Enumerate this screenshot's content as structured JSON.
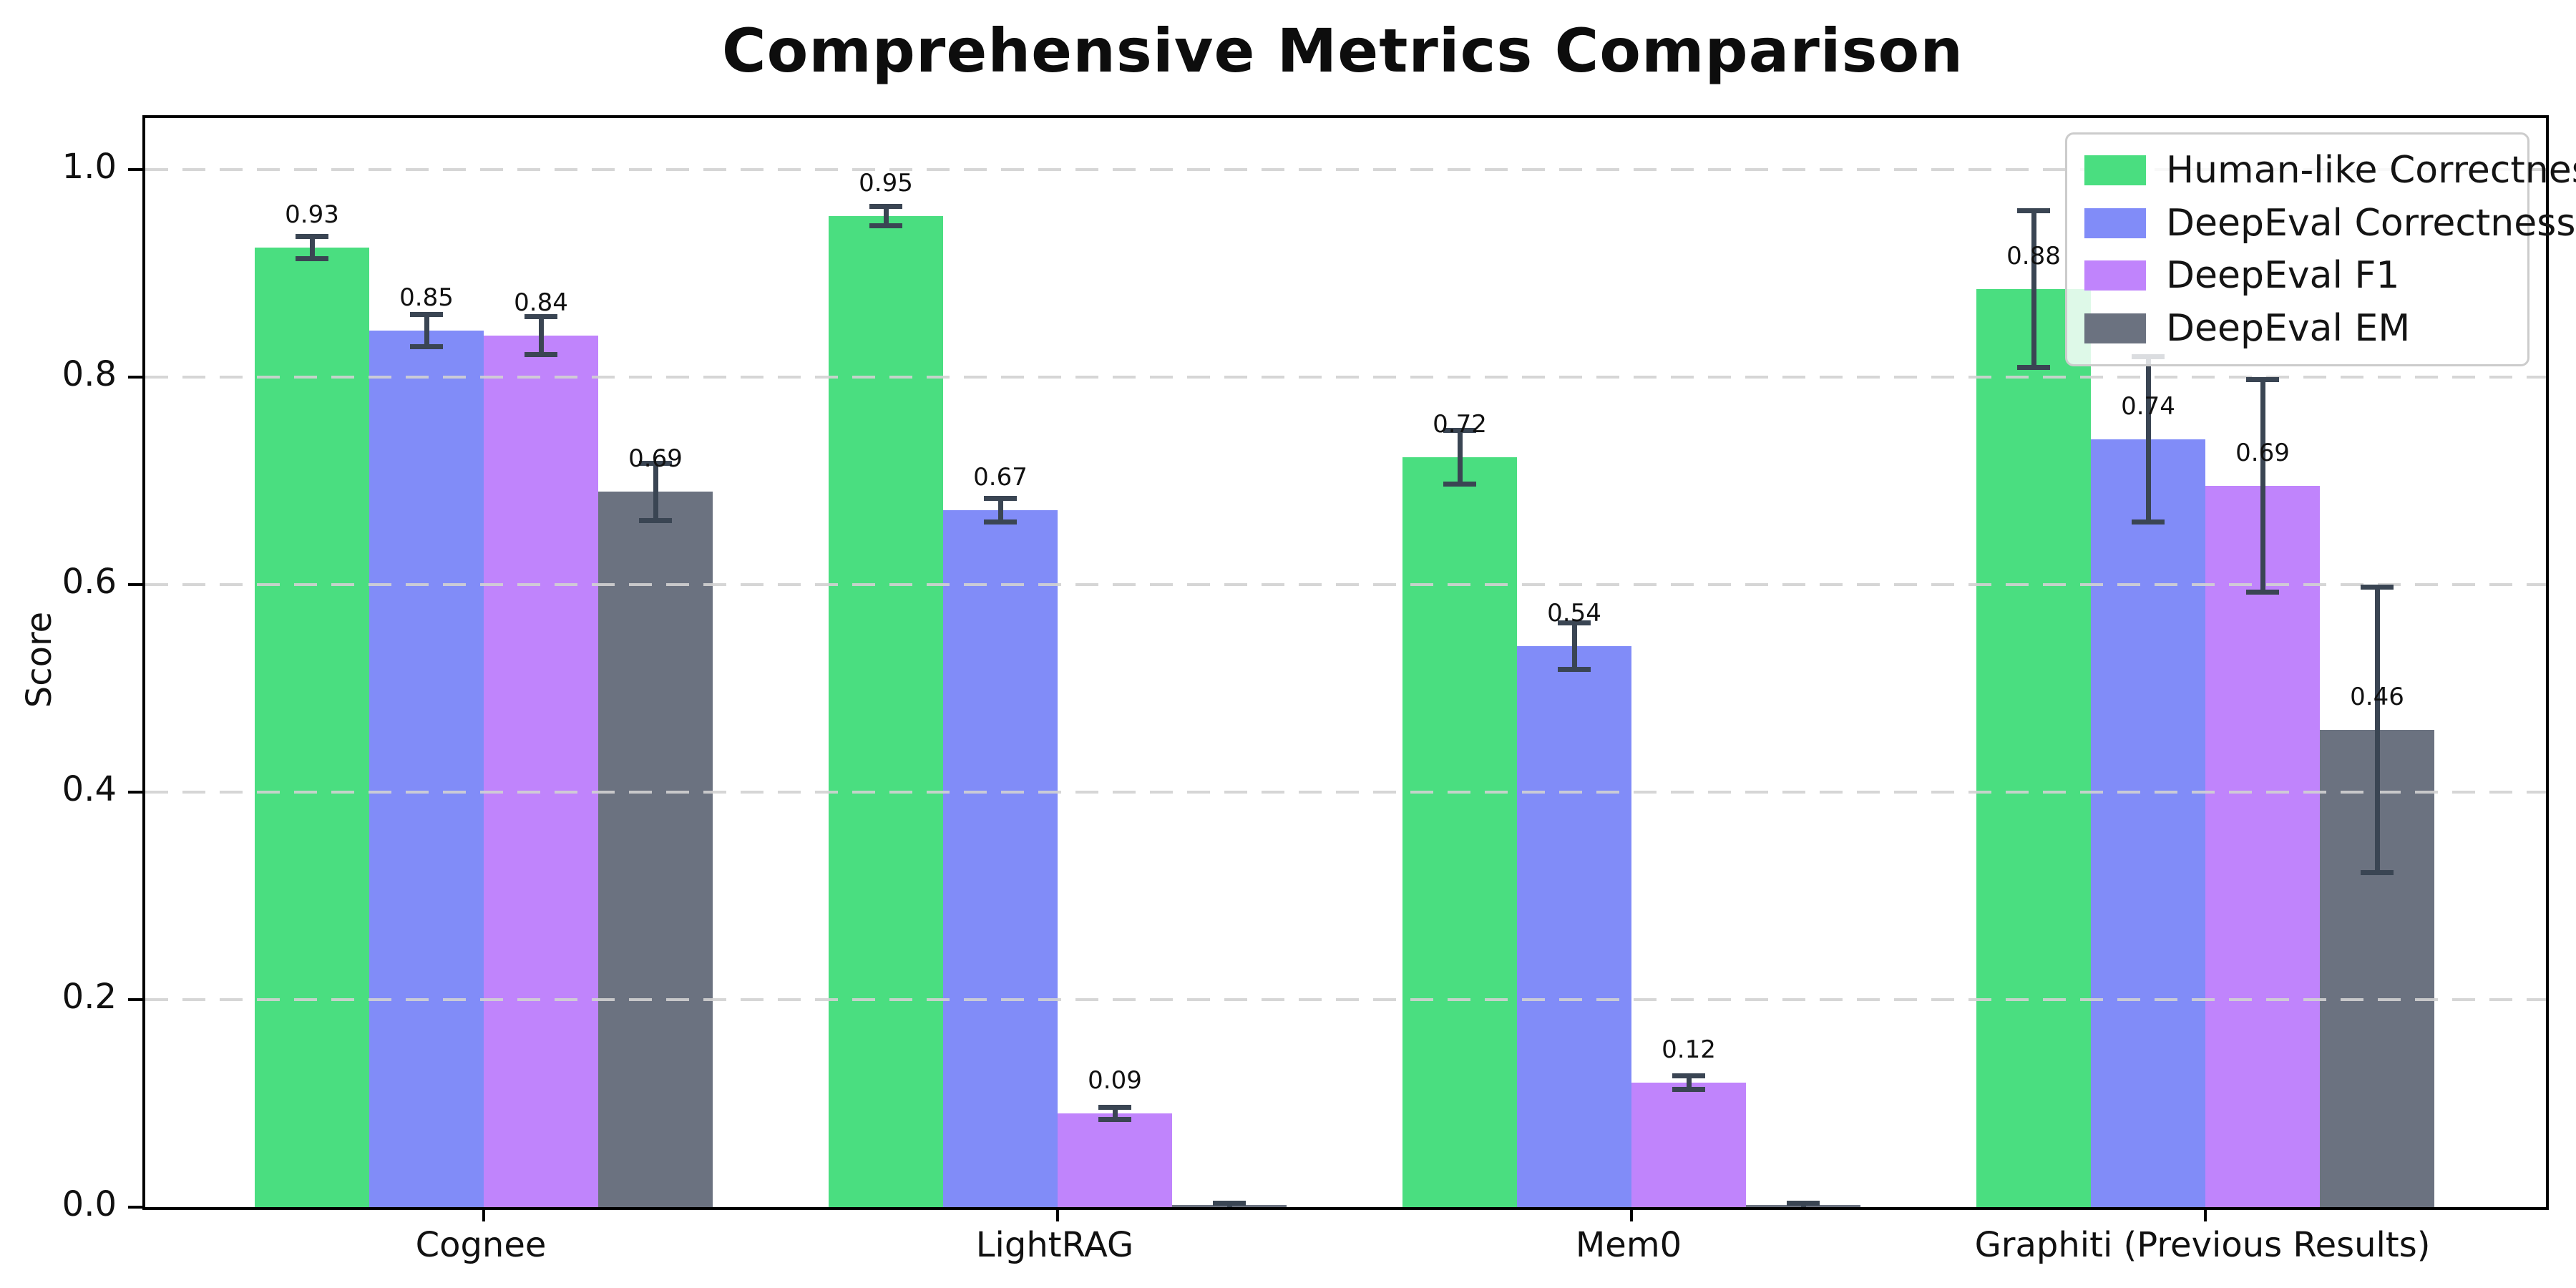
{
  "title": "Comprehensive Metrics Comparison",
  "chart_data": {
    "type": "bar",
    "title": "Comprehensive Metrics Comparison",
    "xlabel": "",
    "ylabel": "Score",
    "ylim": [
      0,
      1.05
    ],
    "grid": "horizontal-dashed",
    "grid_color": "#d2d2d2",
    "error_bar_color": "#3a4553",
    "legend_position": "upper right",
    "yticks": [
      0.0,
      0.2,
      0.4,
      0.6,
      0.8,
      1.0
    ],
    "ytick_labels": [
      "0.0",
      "0.2",
      "0.4",
      "0.6",
      "0.8",
      "1.0"
    ],
    "categories": [
      "Cognee",
      "LightRAG",
      "Mem0",
      "Graphiti (Previous Results)"
    ],
    "series": [
      {
        "name": "Human-like Correctness",
        "color": "#4ade80",
        "values": [
          0.925,
          0.955,
          0.723,
          0.885
        ],
        "errors": [
          0.013,
          0.012,
          0.028,
          0.078
        ],
        "labels": [
          "0.93",
          "0.95",
          "0.72",
          "0.88"
        ]
      },
      {
        "name": "DeepEval Correctness",
        "color": "#818cf8",
        "values": [
          0.845,
          0.672,
          0.541,
          0.74
        ],
        "errors": [
          0.018,
          0.014,
          0.025,
          0.082
        ],
        "labels": [
          "0.85",
          "0.67",
          "0.54",
          "0.74"
        ]
      },
      {
        "name": "DeepEval F1",
        "color": "#c084fc",
        "values": [
          0.84,
          0.09,
          0.12,
          0.695
        ],
        "errors": [
          0.021,
          0.008,
          0.009,
          0.105
        ],
        "labels": [
          "0.84",
          "0.09",
          "0.12",
          "0.69"
        ]
      },
      {
        "name": "DeepEval EM",
        "color": "#6b7280",
        "values": [
          0.69,
          0.002,
          0.002,
          0.46
        ],
        "errors": [
          0.03,
          0.004,
          0.004,
          0.14
        ],
        "labels": [
          "0.69",
          "",
          "",
          "0.46"
        ]
      }
    ]
  }
}
